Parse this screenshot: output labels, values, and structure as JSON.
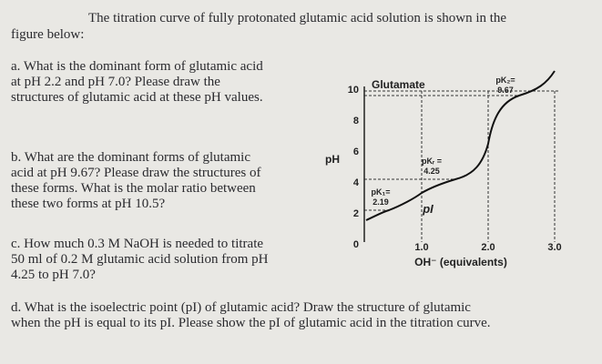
{
  "header": {
    "line1": "The titration curve of fully protonated glutamic acid solution is shown in the",
    "line2": "figure below:"
  },
  "questions": {
    "a": [
      "a. What is the dominant form of glutamic acid",
      "at  pH  2.2  and  pH  7.0?  Please  draw  the",
      "structures of glutamic acid at these pH values."
    ],
    "b": [
      "b. What are the dominant forms of glutamic",
      "acid at pH 9.67? Please draw the structures of",
      "these forms. What is the molar ratio between",
      "these two forms at pH 10.5?"
    ],
    "c": [
      "c. How much 0.3 M NaOH is needed to titrate",
      "50 ml of 0.2 M glutamic acid solution from pH",
      "4.25 to pH 7.0?"
    ],
    "d": [
      "d. What is the isoelectric point (pI) of glutamic acid? Draw the structure of glutamic",
      "when the pH is equal to its pI. Please show the pI of glutamic acid in the titration curve."
    ]
  },
  "figure": {
    "title": "Glutamate",
    "y_label": "pH",
    "x_label": "OH⁻ (equivalents)",
    "y_ticks": [
      "0",
      "2",
      "4",
      "6",
      "8",
      "10"
    ],
    "x_ticks": [
      "1.0",
      "2.0",
      "3.0"
    ],
    "annotations": {
      "pk2": [
        "pK₂=",
        "9.67"
      ],
      "pkr": [
        "pKᵣ =",
        "4.25"
      ],
      "pk1": [
        "pK₁=",
        "2.19"
      ],
      "pi": "pI"
    }
  }
}
